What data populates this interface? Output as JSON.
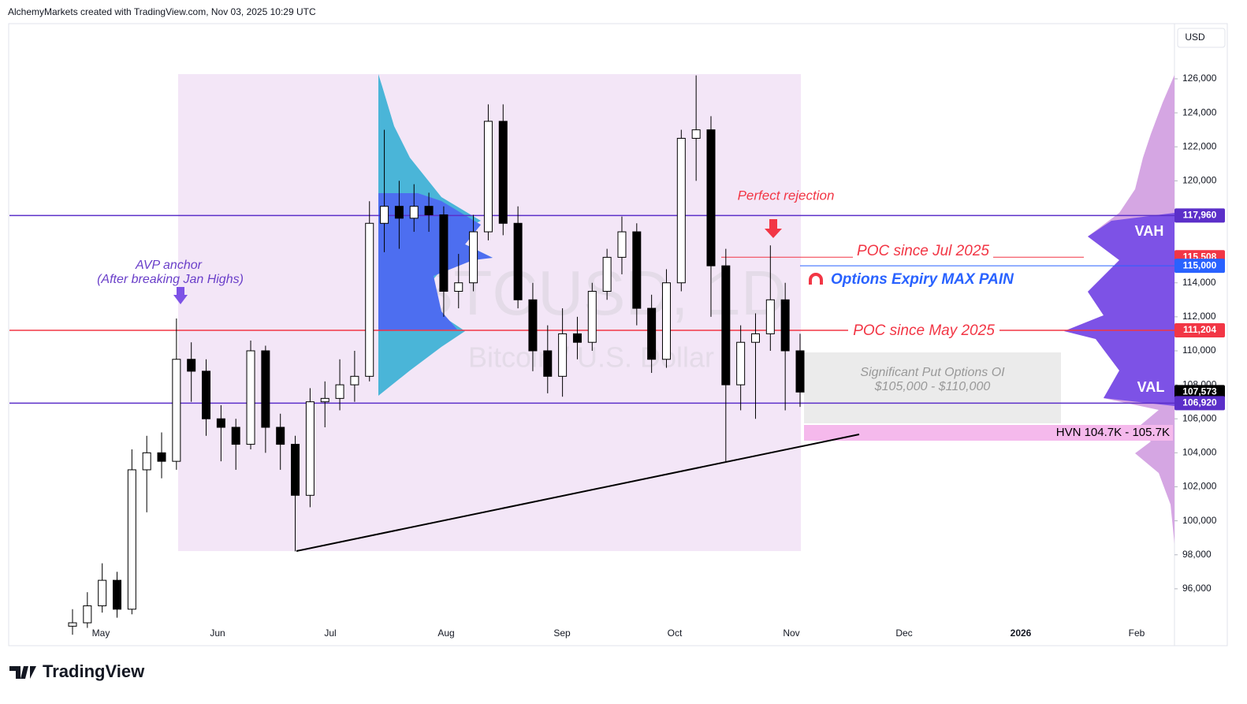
{
  "header": "AlchemyMarkets created with TradingView.com, Nov 03, 2025 10:29 UTC",
  "logo": "TradingView",
  "chart_data": {
    "type": "candlestick",
    "watermark": "BTCUSD, 1D",
    "watermark_sub": "Bitcoin / U.S. Dollar",
    "currency": "USD",
    "ylim": [
      94000,
      129245
    ],
    "yticks": [
      {
        "value": 96000,
        "label": "96,000"
      },
      {
        "value": 98000,
        "label": "98,000"
      },
      {
        "value": 100000,
        "label": "100,000"
      },
      {
        "value": 102000,
        "label": "102,000"
      },
      {
        "value": 104000,
        "label": "104,000"
      },
      {
        "value": 106000,
        "label": "106,000"
      },
      {
        "value": 108000,
        "label": "108,000"
      },
      {
        "value": 110000,
        "label": "110,000"
      },
      {
        "value": 112000,
        "label": "112,000"
      },
      {
        "value": 114000,
        "label": "114,000"
      },
      {
        "value": 120000,
        "label": "120,000"
      },
      {
        "value": 122000,
        "label": "122,000"
      },
      {
        "value": 124000,
        "label": "124,000"
      },
      {
        "value": 126000,
        "label": "126,000"
      }
    ],
    "x_labels": [
      "May",
      "Jun",
      "Jul",
      "Aug",
      "Sep",
      "Oct",
      "Nov",
      "Dec",
      "2026",
      "Feb"
    ],
    "series": [
      {
        "name": "BTCUSD",
        "open": [
          93800,
          94000,
          95000,
          96500,
          94800,
          103000,
          104000,
          103500,
          109500,
          108800,
          106000,
          105500,
          104500,
          110000,
          105500,
          104500,
          101500,
          107000,
          107200,
          108000,
          108500,
          117500,
          118500,
          117800,
          118500,
          118000,
          113500,
          114000,
          117000,
          123500,
          117500,
          113000,
          110000,
          108500,
          111000,
          110500,
          113500,
          115500,
          117000,
          112500,
          109500,
          114000,
          122500,
          123000,
          115000,
          108000,
          110500,
          111000,
          113000,
          110000
        ],
        "high": [
          94800,
          95800,
          97500,
          97000,
          104200,
          105000,
          105200,
          111900,
          110500,
          109500,
          106800,
          106000,
          110600,
          110300,
          106300,
          105000,
          107800,
          108200,
          109500,
          110000,
          118800,
          123000,
          120000,
          119800,
          119300,
          118500,
          115700,
          118000,
          124500,
          124500,
          118500,
          114000,
          111500,
          112500,
          112000,
          114000,
          116000,
          117900,
          117500,
          113300,
          114800,
          123000,
          126200,
          123800,
          116000,
          111500,
          112200,
          116200,
          114000,
          111000
        ],
        "low": [
          93300,
          93700,
          94600,
          94300,
          94500,
          100500,
          102500,
          103000,
          107000,
          105000,
          103500,
          103000,
          104200,
          104000,
          103000,
          98200,
          100800,
          105500,
          106500,
          107000,
          108200,
          115800,
          116000,
          117000,
          117000,
          112000,
          112500,
          113500,
          116500,
          116800,
          112500,
          108800,
          107500,
          107300,
          109500,
          110000,
          113000,
          114500,
          111500,
          108700,
          109000,
          113500,
          120000,
          112000,
          103500,
          106500,
          106000,
          110000,
          106500,
          106700
        ],
        "close": [
          94000,
          95000,
          96500,
          94800,
          103000,
          104000,
          103500,
          109500,
          108800,
          106000,
          105500,
          104500,
          110000,
          105500,
          104500,
          101500,
          107000,
          107200,
          108000,
          108500,
          117500,
          118500,
          117800,
          118500,
          118000,
          113500,
          114000,
          117000,
          123500,
          117500,
          113000,
          110000,
          108500,
          111000,
          110500,
          113500,
          115500,
          117000,
          112500,
          109500,
          114000,
          122500,
          123000,
          115000,
          108000,
          110500,
          111000,
          113000,
          110000,
          107573
        ]
      }
    ],
    "levels": [
      {
        "value": 117960,
        "label": "117,960",
        "color": "#5b2fc9"
      },
      {
        "value": 115508,
        "label": "115,508",
        "color": "#f23645"
      },
      {
        "value": 115000,
        "label": "115,000",
        "color": "#2962ff"
      },
      {
        "value": 111204,
        "label": "111,204",
        "color": "#f23645"
      },
      {
        "value": 107573,
        "label": "107,573",
        "color": "#000000"
      },
      {
        "value": 106920,
        "label": "106,920",
        "color": "#5b2fc9"
      }
    ],
    "annotations": {
      "avp_anchor": "AVP anchor",
      "avp_anchor_sub": "(After breaking Jan Highs)",
      "perfect_rejection": "Perfect rejection",
      "poc_jul": "POC since Jul 2025",
      "poc_may": "POC since May 2025",
      "max_pain": "Options Expiry MAX PAIN",
      "put_oi": "Significant Put Options OI",
      "put_oi_range": "$105,000 - $110,000",
      "hvn": "HVN 104.7K - 105.7K",
      "vah": "VAH",
      "val": "VAL"
    }
  }
}
